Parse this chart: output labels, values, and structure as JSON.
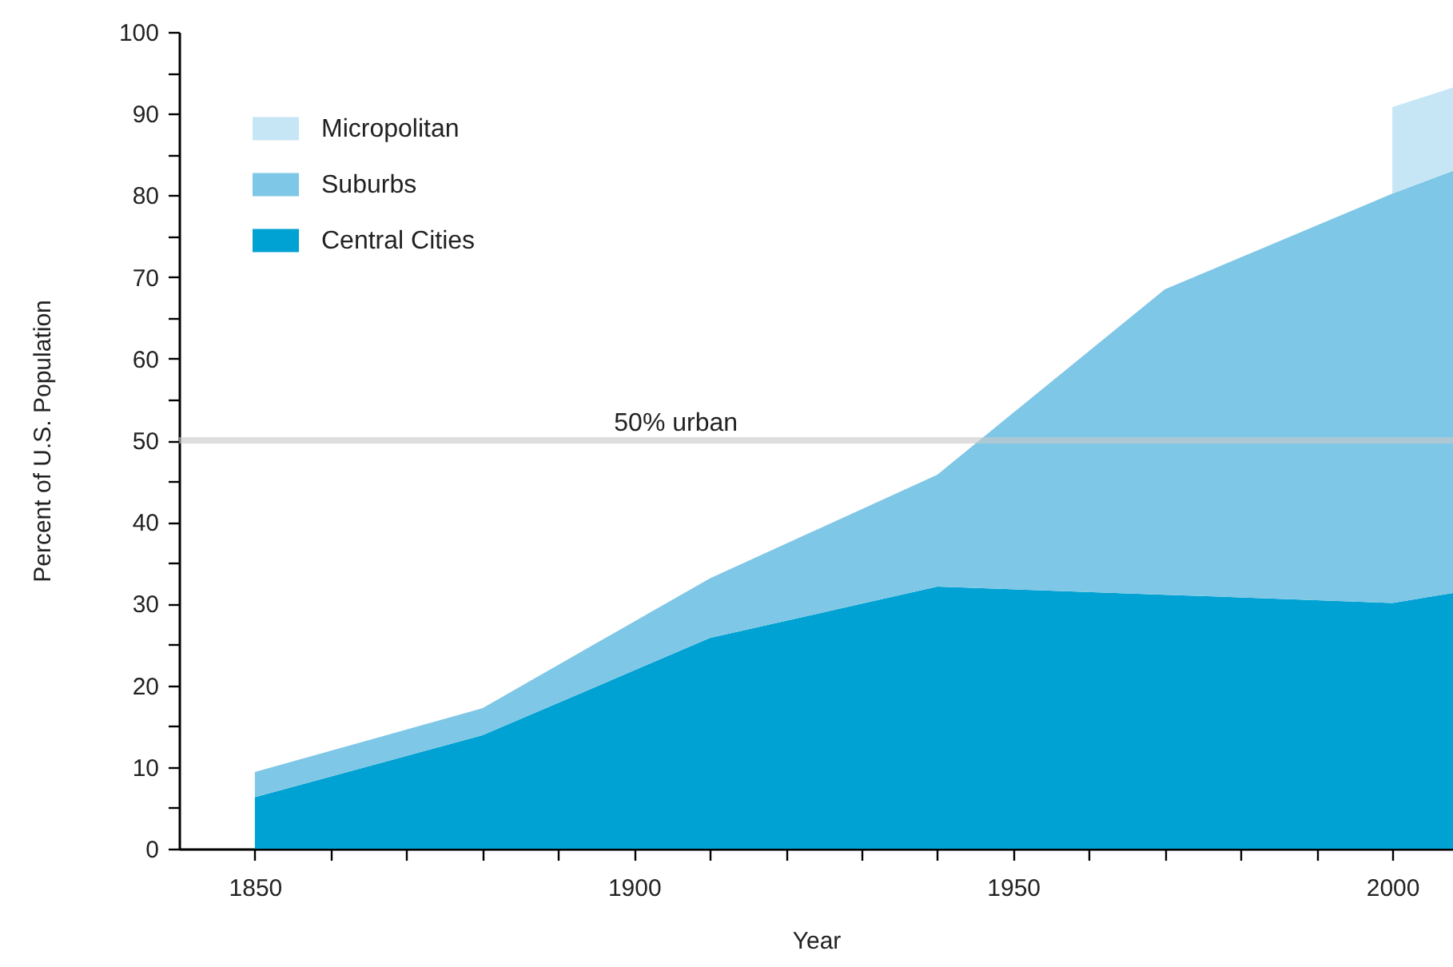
{
  "chart_data": {
    "type": "area",
    "stacked": true,
    "xlabel": "Year",
    "ylabel": "Percent of U.S. Population",
    "x": [
      1850,
      1880,
      1910,
      1940,
      1970,
      2000,
      2008
    ],
    "series": [
      {
        "name": "Central Cities",
        "color": "#00a2d3",
        "values": [
          6.3,
          13.9,
          25.8,
          32.1,
          31.1,
          30.1,
          31.3
        ]
      },
      {
        "name": "Suburbs",
        "color": "#7fc7e6",
        "values": [
          3.1,
          3.3,
          7.3,
          13.7,
          37.4,
          50.1,
          51.7
        ]
      },
      {
        "name": "Micropolitan",
        "color": "#c6e6f6",
        "values": [
          null,
          null,
          null,
          null,
          null,
          10.6,
          10.2
        ]
      }
    ],
    "xlim": [
      1840,
      2008
    ],
    "xticks": [
      1850,
      {
        "value": 1860,
        "label": null
      },
      {
        "value": 1870,
        "label": null
      },
      {
        "value": 1880,
        "label": null
      },
      {
        "value": 1890,
        "label": null
      },
      1900,
      {
        "value": 1910,
        "label": null
      },
      {
        "value": 1920,
        "label": null
      },
      {
        "value": 1930,
        "label": null
      },
      {
        "value": 1940,
        "label": null
      },
      1950,
      {
        "value": 1960,
        "label": null
      },
      {
        "value": 1970,
        "label": null
      },
      {
        "value": 1980,
        "label": null
      },
      {
        "value": 1990,
        "label": null
      },
      2000
    ],
    "ylim": [
      0,
      100
    ],
    "yticks": [
      0,
      {
        "value": 5,
        "label": null
      },
      10,
      {
        "value": 15,
        "label": null
      },
      20,
      {
        "value": 25,
        "label": null
      },
      30,
      {
        "value": 35,
        "label": null
      },
      40,
      {
        "value": 45,
        "label": null
      },
      50,
      {
        "value": 55,
        "label": null
      },
      60,
      {
        "value": 65,
        "label": null
      },
      70,
      {
        "value": 75,
        "label": null
      },
      80,
      {
        "value": 85,
        "label": null
      },
      90,
      {
        "value": 95,
        "label": null
      },
      100
    ],
    "ref_lines": [
      {
        "axis": "y",
        "value": 50,
        "label": "50% urban",
        "color": "#c8c8c8"
      }
    ],
    "legend": "top left",
    "grid": false
  }
}
